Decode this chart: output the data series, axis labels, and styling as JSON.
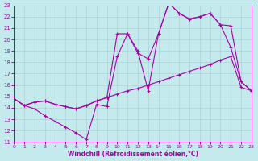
{
  "xlabel": "Windchill (Refroidissement éolien,°C)",
  "xlim": [
    0,
    23
  ],
  "ylim": [
    11,
    23
  ],
  "xticks": [
    0,
    1,
    2,
    3,
    4,
    5,
    6,
    7,
    8,
    9,
    10,
    11,
    12,
    13,
    14,
    15,
    16,
    17,
    18,
    19,
    20,
    21,
    22,
    23
  ],
  "yticks": [
    11,
    12,
    13,
    14,
    15,
    16,
    17,
    18,
    19,
    20,
    21,
    22,
    23
  ],
  "bg_color": "#c5eaed",
  "line_color": "#aa00aa",
  "grid_color": "#aacccc",
  "line1_x": [
    0,
    1,
    2,
    3,
    4,
    5,
    6,
    7,
    8,
    9,
    10,
    11,
    12,
    13,
    14,
    15,
    16,
    17,
    18,
    19,
    20,
    21,
    22,
    23
  ],
  "line1_y": [
    14.8,
    14.2,
    14.5,
    14.6,
    14.3,
    14.1,
    13.9,
    14.2,
    14.6,
    14.9,
    15.2,
    15.5,
    15.7,
    16.0,
    16.3,
    16.6,
    16.9,
    17.2,
    17.5,
    17.8,
    18.2,
    18.5,
    15.8,
    15.5
  ],
  "line2_x": [
    0,
    1,
    2,
    3,
    4,
    5,
    6,
    7,
    8,
    9,
    10,
    11,
    12,
    13,
    14,
    15,
    16,
    17,
    18,
    19,
    20,
    21,
    22,
    23
  ],
  "line2_y": [
    14.8,
    14.2,
    13.9,
    13.3,
    12.8,
    12.3,
    11.8,
    11.2,
    14.3,
    14.1,
    18.5,
    20.5,
    18.8,
    18.3,
    20.5,
    23.2,
    22.3,
    21.8,
    22.0,
    22.3,
    21.3,
    21.2,
    16.3,
    15.5
  ],
  "line3_x": [
    0,
    1,
    2,
    3,
    4,
    5,
    6,
    7,
    8,
    9,
    10,
    11,
    12,
    13,
    14,
    15,
    16,
    17,
    18,
    19,
    20,
    21,
    22,
    23
  ],
  "line3_y": [
    14.8,
    14.2,
    14.5,
    14.6,
    14.3,
    14.1,
    13.9,
    14.2,
    14.6,
    14.9,
    20.5,
    20.5,
    19.0,
    15.5,
    20.5,
    23.2,
    22.3,
    21.8,
    22.0,
    22.3,
    21.3,
    19.3,
    16.3,
    15.5
  ]
}
